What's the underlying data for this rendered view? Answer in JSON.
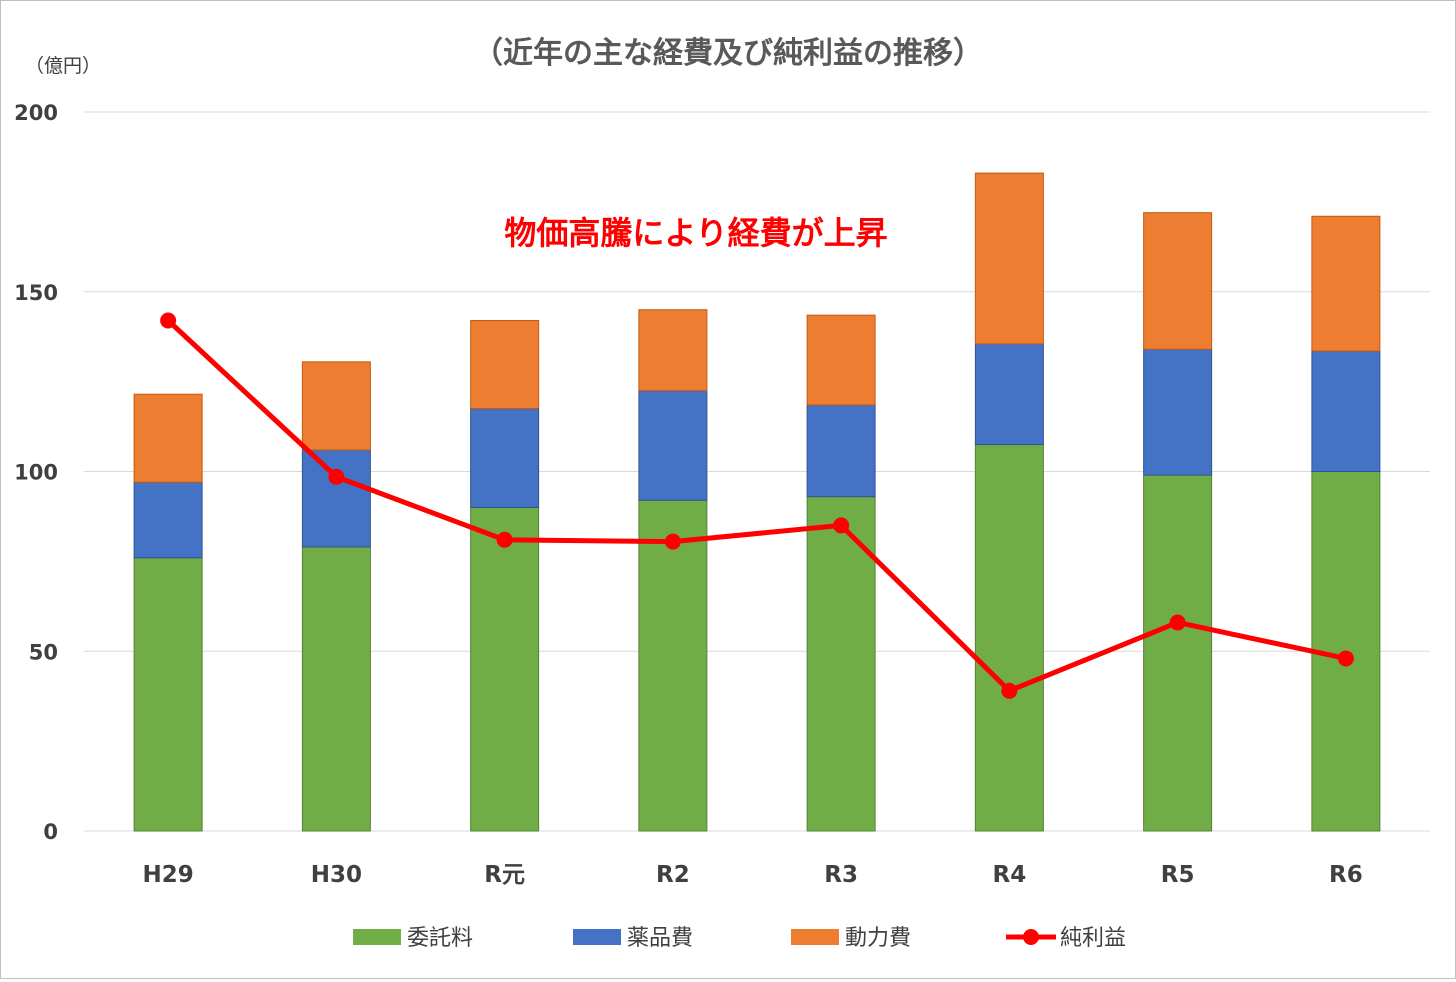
{
  "chart_data": {
    "type": "bar",
    "stacked": true,
    "title": "（近年の主な経費及び純利益の推移）",
    "ylabel": "（億円）",
    "xlabel": "",
    "ylim": [
      0,
      200
    ],
    "yticks": [
      "0",
      "50",
      "100",
      "150",
      "200"
    ],
    "grid": true,
    "legend_position": "bottom",
    "categories": [
      "H29",
      "H30",
      "R元",
      "R2",
      "R3",
      "R4",
      "R5",
      "R6"
    ],
    "series": [
      {
        "name": "委託料",
        "kind": "bar",
        "color": "#70ad47",
        "values": [
          76,
          79,
          90,
          92,
          93,
          107.5,
          99,
          100
        ]
      },
      {
        "name": "薬品費",
        "kind": "bar",
        "color": "#4472c4",
        "values": [
          21,
          27,
          27.5,
          30.5,
          25.5,
          28,
          35,
          33.5
        ]
      },
      {
        "name": "動力費",
        "kind": "bar",
        "color": "#ed7d31",
        "values": [
          24.5,
          24.5,
          24.5,
          22.5,
          25,
          47.5,
          38,
          37.5
        ]
      },
      {
        "name": "純利益",
        "kind": "line",
        "color": "#ff0000",
        "values": [
          142,
          98.5,
          81,
          80.5,
          85,
          39,
          58,
          48
        ]
      }
    ],
    "annotation": "物価高騰により経費が上昇"
  }
}
